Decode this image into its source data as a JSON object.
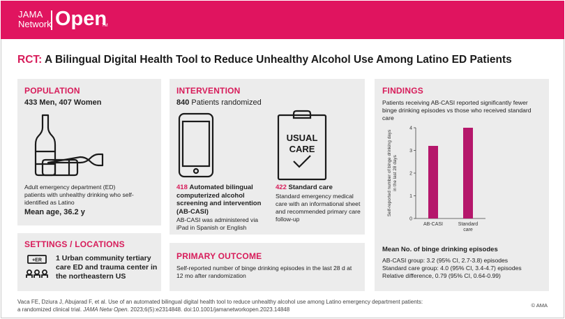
{
  "brand": {
    "line1": "JAMA",
    "line2": "Network",
    "word": "Open",
    "tm": "TM"
  },
  "title": {
    "prefix": "RCT:",
    "text": "A Bilingual Digital Health Tool to Reduce Unhealthy Alcohol Use Among Latino ED Patients"
  },
  "population": {
    "heading": "POPULATION",
    "counts": "433 Men, 407 Women",
    "description": "Adult emergency department (ED) patients with unhealthy drinking who self-identified as Latino",
    "mean_age": "Mean age, 36.2 y",
    "icon": "bottles-icon"
  },
  "settings": {
    "heading": "SETTINGS / LOCATIONS",
    "text": "1 Urban community tertiary care ED and trauma center in the northeastern US",
    "icon_label": "+ER",
    "icon": "hospital-icon"
  },
  "intervention": {
    "heading": "INTERVENTION",
    "randomized_count": "840",
    "randomized_text": "Patients randomized",
    "arm1": {
      "count": "418",
      "title": "Automated bilingual computerized alcohol screening and intervention (AB-CASI)",
      "desc": "AB-CASI was administered via iPad in Spanish or English",
      "icon": "tablet-icon"
    },
    "arm2": {
      "count": "422",
      "title": "Standard care",
      "desc": "Standard emergency medical care with an informational sheet and recommended primary care follow-up",
      "icon": "clipboard-icon",
      "clipboard_line1": "USUAL",
      "clipboard_line2": "CARE"
    }
  },
  "outcome": {
    "heading": "PRIMARY OUTCOME",
    "text": "Self-reported number of binge drinking episodes in the last 28 d at 12 mo after randomization"
  },
  "findings": {
    "heading": "FINDINGS",
    "summary": "Patients receiving AB-CASI reported significantly fewer binge drinking episodes vs those who received standard care",
    "means_heading": "Mean No. of binge drinking episodes",
    "lines": [
      "AB-CASI group: 3.2 (95% CI, 2.7-3.8) episodes",
      "Standard care group: 4.0 (95% CI, 3.4-4.7) episodes",
      "Relative difference, 0.79 (95% CI, 0.64-0.99)"
    ]
  },
  "chart_data": {
    "type": "bar",
    "categories": [
      "AB-CASI",
      "Standard care"
    ],
    "category_lines": [
      [
        "AB-CASI"
      ],
      [
        "Standard",
        "care"
      ]
    ],
    "values": [
      3.2,
      4.0
    ],
    "ylabel_lines": [
      "Self-reported number of binge drinking days",
      "in the last 28 days"
    ],
    "ylim": [
      0,
      4
    ],
    "yticks": [
      0,
      1,
      2,
      3,
      4
    ],
    "bar_color": "#b5176b",
    "grid": false
  },
  "citation": {
    "line1": "Vaca FE, Dziura J, Abujarad F, et al. Use of an automated bilingual digital health tool to reduce unhealthy alcohol use among Latino emergency department patients:",
    "line2_pre": "a randomized clinical trial. ",
    "journal": "JAMA Netw Open",
    "line2_post": ". 2023;6(5):e2314848. doi:10.1001/jamanetworkopen.2023.14848"
  },
  "copyright": "© AMA",
  "colors": {
    "brand": "#e0145f",
    "heading": "#d71c5a",
    "panel": "#ececec",
    "bar": "#b5176b"
  }
}
